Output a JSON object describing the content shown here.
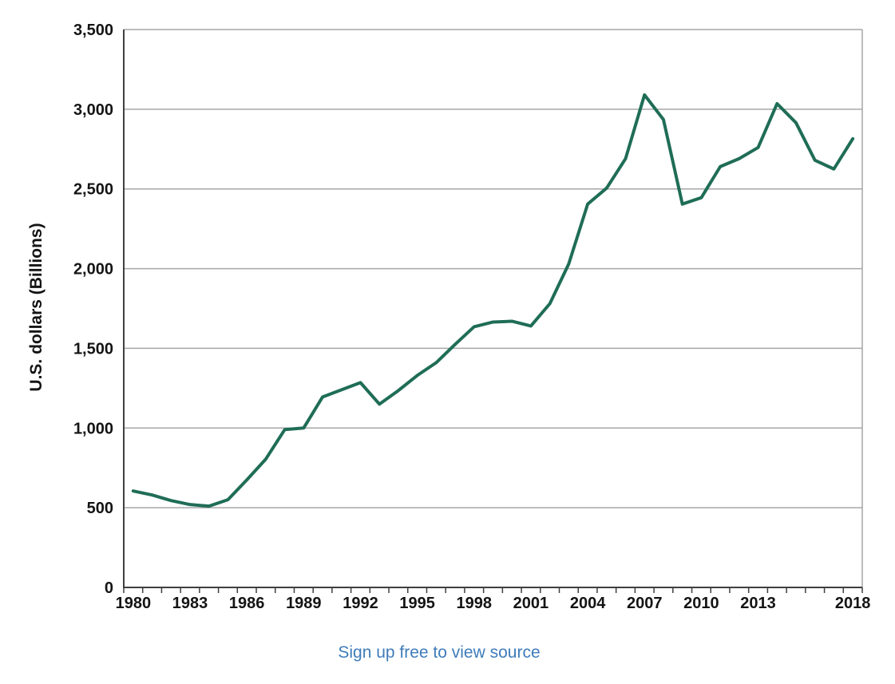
{
  "page": {
    "background": "#ffffff",
    "source_link": {
      "label": "Sign up free to view source",
      "color": "#3f7cba"
    }
  },
  "chart_data": {
    "type": "line",
    "title": "",
    "xlabel": "",
    "ylabel": "U.S. dollars (Billions)",
    "x": [
      1980,
      1981,
      1982,
      1983,
      1984,
      1985,
      1986,
      1987,
      1988,
      1989,
      1990,
      1991,
      1992,
      1993,
      1994,
      1995,
      1996,
      1997,
      1998,
      1999,
      2000,
      2001,
      2002,
      2003,
      2004,
      2005,
      2006,
      2007,
      2008,
      2009,
      2010,
      2011,
      2012,
      2013,
      2014,
      2015,
      2016,
      2017,
      2018
    ],
    "series": [
      {
        "name": "",
        "color": "#1f6d56",
        "values": [
          605,
          580,
          545,
          520,
          510,
          550,
          675,
          805,
          990,
          1000,
          1195,
          1240,
          1285,
          1150,
          1235,
          1330,
          1410,
          1525,
          1635,
          1665,
          1670,
          1640,
          1780,
          2030,
          2405,
          2505,
          2690,
          3090,
          2935,
          2405,
          2445,
          2640,
          2690,
          2760,
          3035,
          2915,
          2680,
          2625,
          2815
        ]
      }
    ],
    "ylim": [
      0,
      3500
    ],
    "y_ticks": [
      0,
      500,
      1000,
      1500,
      2000,
      2500,
      3000,
      3500
    ],
    "y_tick_labels": [
      "0",
      "500",
      "1,000",
      "1,500",
      "2,000",
      "2,500",
      "3,000",
      "3,500"
    ],
    "x_tick_label_years": [
      1980,
      1983,
      1986,
      1989,
      1992,
      1995,
      1998,
      2001,
      2004,
      2007,
      2010,
      2013,
      2018
    ],
    "grid": true,
    "legend": "none",
    "colors": {
      "line": "#1f6d56",
      "gridline": "#a6a6a6",
      "axis": "#3f3f3f",
      "plot_border": "#a6a6a6",
      "tick_label": "#141414"
    }
  }
}
